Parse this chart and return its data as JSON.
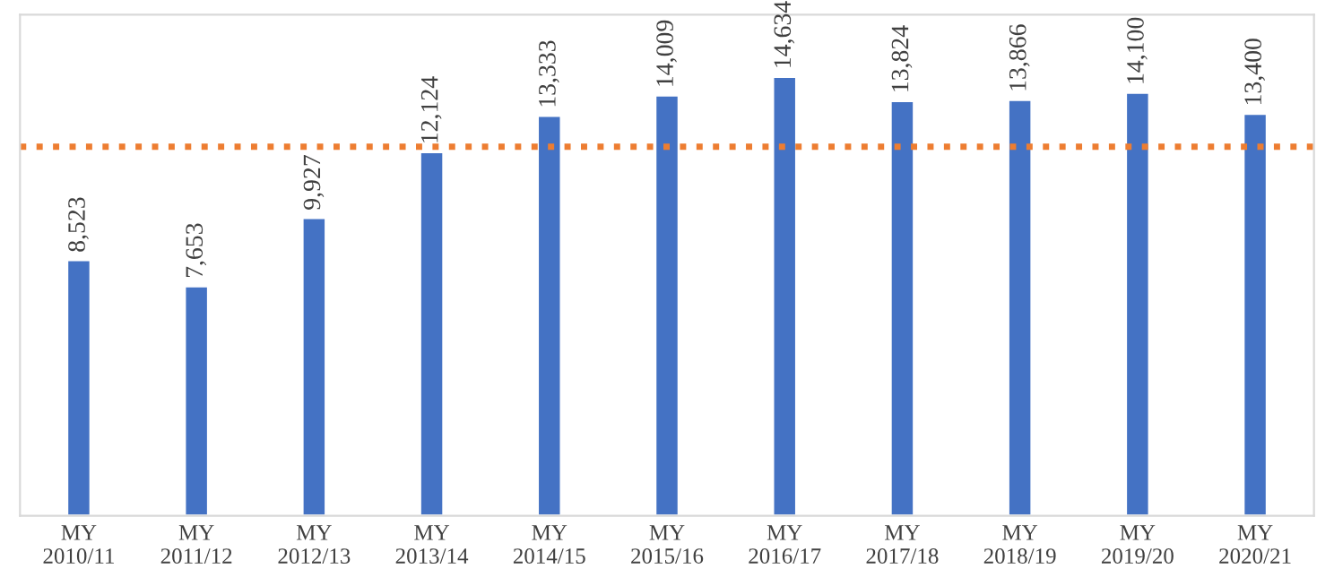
{
  "chart_data": {
    "type": "bar",
    "categories": [
      "MY\n2010/11",
      "MY\n2011/12",
      "MY\n2012/13",
      "MY\n2013/14",
      "MY\n2014/15",
      "MY\n2015/16",
      "MY\n2016/17",
      "MY\n2017/18",
      "MY\n2018/19",
      "MY\n2019/20",
      "MY\n2020/21"
    ],
    "values": [
      8523,
      7653,
      9927,
      12124,
      13333,
      14009,
      14634,
      13824,
      13866,
      14100,
      13400
    ],
    "value_labels": [
      "8,523",
      "7,653",
      "9,927",
      "12,124",
      "13,333",
      "14,009",
      "14,634",
      "13,824",
      "13,866",
      "14,100",
      "13,400"
    ],
    "color": "#4472c4",
    "ylim": [
      0,
      16700
    ],
    "tick_labels": "x",
    "ref_lines": [
      {
        "axis": "y",
        "value": 12300,
        "color": "#ed7d31",
        "line_style": "dotted"
      }
    ]
  }
}
